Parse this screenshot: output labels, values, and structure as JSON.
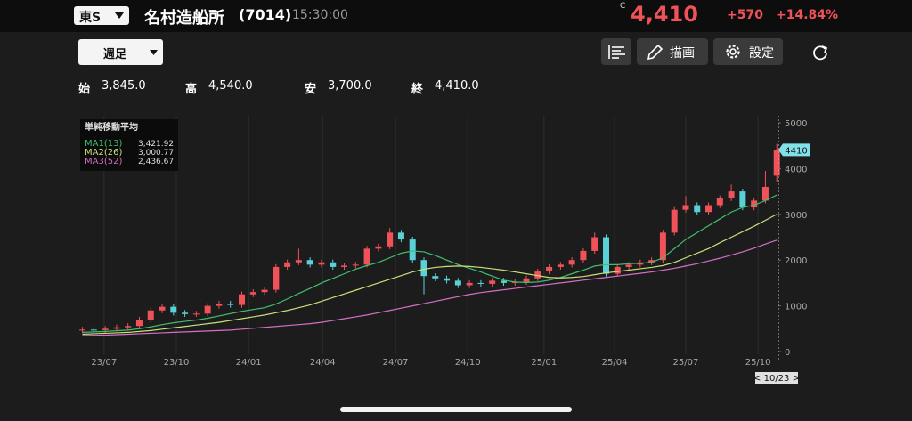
{
  "header": {
    "market": "東S",
    "name": "名村造船所",
    "code": "(7014)",
    "time": "15:30:00",
    "flag": "C",
    "price": "4,410",
    "change": "+570",
    "change_pct": "+14.84%"
  },
  "toolbar": {
    "period": "週足",
    "draw": "描画",
    "settings": "設定"
  },
  "ohlc": [
    {
      "label": "始",
      "value": "3,845.0"
    },
    {
      "label": "高",
      "value": "4,540.0"
    },
    {
      "label": "安",
      "value": "3,700.0"
    },
    {
      "label": "終",
      "value": "4,410.0"
    }
  ],
  "chart_data": {
    "type": "candlestick",
    "legend_title": "単純移動平均",
    "up_color": "#f0525a",
    "down_color": "#5ad1d8",
    "candles": {
      "open": [
        460,
        480,
        470,
        500,
        530,
        560,
        700,
        900,
        980,
        850,
        820,
        830,
        1000,
        1050,
        1020,
        1250,
        1300,
        1350,
        1850,
        1950,
        2000,
        1900,
        1950,
        1850,
        1880,
        1900,
        2250,
        2300,
        2600,
        2450,
        2000,
        1650,
        1600,
        1550,
        1450,
        1500,
        1480,
        1550,
        1500,
        1520,
        1600,
        1750,
        1850,
        1900,
        2000,
        2200,
        2500,
        1700,
        1850,
        1900,
        1950,
        2000,
        2600,
        3100,
        3200,
        3050,
        3200,
        3350,
        3500,
        3150,
        3300,
        3845
      ],
      "high": [
        540,
        540,
        560,
        590,
        620,
        760,
        960,
        1040,
        1040,
        910,
        890,
        1060,
        1110,
        1110,
        1310,
        1360,
        1410,
        1910,
        2010,
        2250,
        2060,
        2010,
        2010,
        1940,
        1960,
        2310,
        2360,
        2700,
        2660,
        2510,
        2060,
        1710,
        1660,
        1610,
        1560,
        1560,
        1610,
        1610,
        1580,
        1660,
        1810,
        1910,
        1960,
        2060,
        2260,
        2600,
        2560,
        1910,
        1960,
        2010,
        2060,
        2660,
        3160,
        3400,
        3260,
        3260,
        3410,
        3650,
        3560,
        3360,
        3950,
        4540
      ],
      "low": [
        400,
        410,
        410,
        440,
        470,
        500,
        640,
        840,
        790,
        760,
        760,
        770,
        940,
        960,
        960,
        1190,
        1240,
        1290,
        1790,
        1890,
        1840,
        1840,
        1790,
        1790,
        1820,
        1840,
        2190,
        2240,
        2390,
        1940,
        1250,
        1540,
        1490,
        1390,
        1390,
        1420,
        1420,
        1440,
        1440,
        1460,
        1540,
        1690,
        1790,
        1840,
        1940,
        2140,
        1640,
        1640,
        1790,
        1840,
        1890,
        1940,
        2540,
        3040,
        2990,
        2990,
        3140,
        3290,
        3090,
        3090,
        3240,
        3700
      ],
      "close": [
        480,
        470,
        500,
        530,
        560,
        700,
        900,
        980,
        850,
        820,
        830,
        1000,
        1050,
        1020,
        1250,
        1300,
        1350,
        1850,
        1950,
        2000,
        1900,
        1950,
        1850,
        1880,
        1900,
        2250,
        2300,
        2600,
        2450,
        2000,
        1650,
        1600,
        1550,
        1450,
        1500,
        1480,
        1550,
        1500,
        1520,
        1600,
        1750,
        1850,
        1900,
        2000,
        2200,
        2500,
        1700,
        1850,
        1900,
        1950,
        2000,
        2600,
        3100,
        3200,
        3050,
        3200,
        3350,
        3500,
        3150,
        3300,
        3600,
        4410
      ]
    },
    "series": [
      {
        "name": "MA1(13)",
        "color": "#3fbf6f",
        "legend_value": "3,421.92",
        "values": [
          420,
          430,
          440,
          455,
          470,
          500,
          540,
          590,
          630,
          660,
          690,
          730,
          780,
          830,
          880,
          920,
          960,
          1040,
          1150,
          1270,
          1380,
          1500,
          1600,
          1700,
          1800,
          1880,
          1950,
          2050,
          2150,
          2200,
          2180,
          2100,
          2000,
          1900,
          1820,
          1740,
          1650,
          1560,
          1520,
          1510,
          1520,
          1560,
          1620,
          1700,
          1780,
          1870,
          1900,
          1900,
          1920,
          1930,
          1950,
          2050,
          2250,
          2450,
          2600,
          2750,
          2900,
          3050,
          3150,
          3200,
          3300,
          3421.92
        ]
      },
      {
        "name": "MA2(26)",
        "color": "#c8e07a",
        "legend_value": "3,000.77",
        "values": [
          380,
          390,
          400,
          410,
          420,
          440,
          460,
          490,
          520,
          550,
          580,
          610,
          640,
          680,
          720,
          760,
          800,
          850,
          900,
          960,
          1020,
          1100,
          1180,
          1260,
          1340,
          1420,
          1500,
          1580,
          1660,
          1740,
          1800,
          1840,
          1860,
          1870,
          1860,
          1840,
          1810,
          1780,
          1740,
          1700,
          1660,
          1620,
          1610,
          1620,
          1640,
          1680,
          1720,
          1750,
          1780,
          1810,
          1840,
          1880,
          1950,
          2050,
          2150,
          2250,
          2380,
          2500,
          2620,
          2740,
          2870,
          3000.77
        ]
      },
      {
        "name": "MA3(52)",
        "color": "#d56fc5",
        "legend_value": "2,436.67",
        "values": [
          350,
          355,
          360,
          370,
          380,
          390,
          400,
          410,
          420,
          430,
          440,
          450,
          460,
          470,
          490,
          510,
          530,
          550,
          570,
          590,
          610,
          640,
          680,
          720,
          760,
          800,
          850,
          900,
          950,
          1000,
          1050,
          1100,
          1150,
          1200,
          1250,
          1290,
          1320,
          1350,
          1380,
          1410,
          1440,
          1470,
          1500,
          1530,
          1560,
          1590,
          1620,
          1650,
          1680,
          1710,
          1740,
          1780,
          1820,
          1870,
          1920,
          1980,
          2040,
          2110,
          2180,
          2260,
          2350,
          2436.67
        ]
      }
    ],
    "xlim": [
      -0.2,
      62
    ],
    "xticks": [
      {
        "value": 1.9,
        "label": "23/07"
      },
      {
        "value": 8.25,
        "label": "23/10"
      },
      {
        "value": 14.6,
        "label": "24/01"
      },
      {
        "value": 21.1,
        "label": "24/04"
      },
      {
        "value": 27.5,
        "label": "24/07"
      },
      {
        "value": 33.85,
        "label": "24/10"
      },
      {
        "value": 40.55,
        "label": "25/01"
      },
      {
        "value": 46.75,
        "label": "25/04"
      },
      {
        "value": 53,
        "label": "25/07"
      },
      {
        "value": 59.35,
        "label": "25/10"
      }
    ],
    "ylim": [
      0,
      5000
    ],
    "yticks": [
      0,
      1000,
      2000,
      3000,
      4000,
      5000
    ],
    "grid": true,
    "price_tag": 4410,
    "cursor_label": "< 10/23 >"
  }
}
